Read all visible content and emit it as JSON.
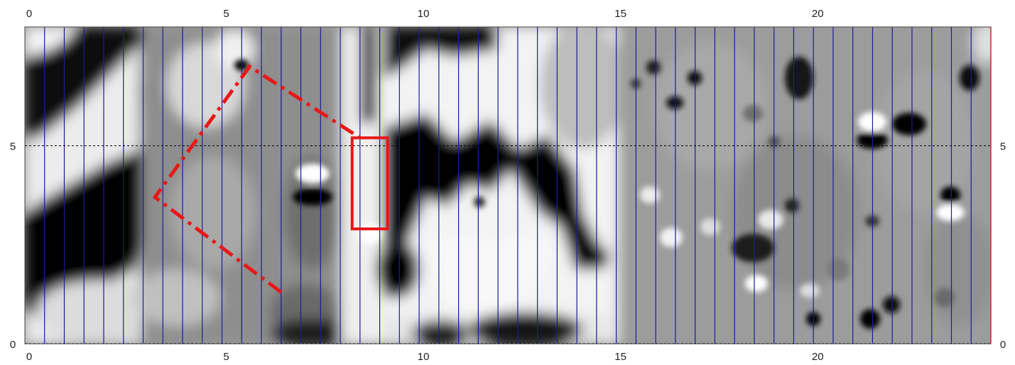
{
  "chart_data": {
    "type": "heatmap",
    "title": "",
    "xlabel": "",
    "ylabel": "",
    "xlim": [
      0,
      24.5
    ],
    "ylim": [
      0,
      8
    ],
    "x_ticks": [
      "0",
      "5",
      "10",
      "15",
      "20"
    ],
    "y_ticks": [
      "0",
      "5"
    ],
    "reference_line_y": 5,
    "grid": "vertical traverse lines every 0.5 m",
    "colormap": "grayscale (black = low, white = high)",
    "annotations": [
      {
        "shape": "dash-dot open polygon",
        "color": "#e81818",
        "points": [
          [
            6.5,
            1.3
          ],
          [
            3.3,
            3.7
          ],
          [
            5.7,
            7.0
          ],
          [
            8.5,
            5.2
          ]
        ]
      },
      {
        "shape": "rectangle",
        "color": "#e81818",
        "x_range": [
          8.3,
          9.2
        ],
        "y_range": [
          2.9,
          5.2
        ]
      }
    ]
  }
}
